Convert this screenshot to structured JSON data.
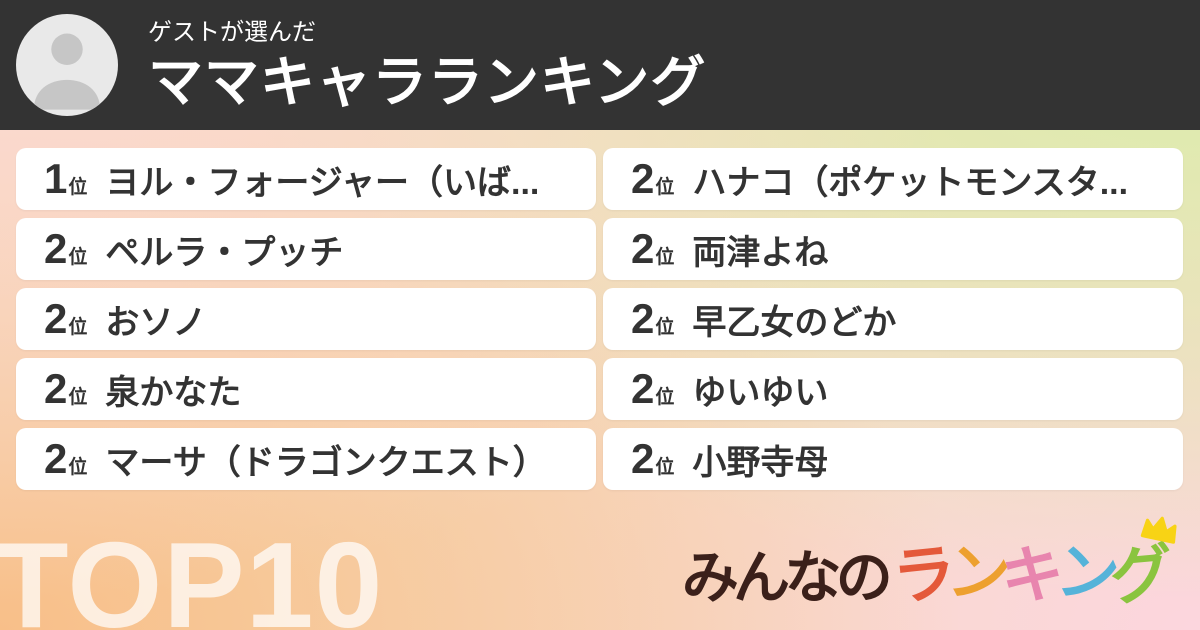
{
  "header": {
    "subtitle": "ゲストが選んだ",
    "title": "ママキャラランキング",
    "avatar": "guest-person-icon"
  },
  "ranking": {
    "rank_suffix": "位",
    "columns": [
      {
        "items": [
          {
            "rank": "1",
            "name": "ヨル・フォージャー（いば..."
          },
          {
            "rank": "2",
            "name": "ペルラ・プッチ"
          },
          {
            "rank": "2",
            "name": "おソノ"
          },
          {
            "rank": "2",
            "name": "泉かなた"
          },
          {
            "rank": "2",
            "name": "マーサ（ドラゴンクエスト）"
          }
        ]
      },
      {
        "items": [
          {
            "rank": "2",
            "name": "ハナコ（ポケットモンスタ..."
          },
          {
            "rank": "2",
            "name": "両津よね"
          },
          {
            "rank": "2",
            "name": "早乙女のどか"
          },
          {
            "rank": "2",
            "name": "ゆいゆい"
          },
          {
            "rank": "2",
            "name": "小野寺母"
          }
        ]
      }
    ]
  },
  "footer": {
    "top_label": "TOP10",
    "logo": {
      "part1": "みんなの",
      "part2_chars": [
        {
          "ch": "ラ",
          "color": "#e4593a"
        },
        {
          "ch": "ン",
          "color": "#eda02f"
        },
        {
          "ch": "キ",
          "color": "#e885ae"
        },
        {
          "ch": "ン",
          "color": "#55b3d9"
        },
        {
          "ch": "グ",
          "color": "#8ac43f"
        }
      ],
      "crown_color": "#f8d315"
    }
  },
  "colors": {
    "header_bg": "#333333",
    "card_bg": "#ffffff",
    "text": "#333333",
    "bg_top_left": "#fcd9d4",
    "bg_top_right": "#daeeab",
    "bg_bottom_left": "#f8bf89",
    "bg_bottom_right": "#fcd6de",
    "logo_part1": "#3b201a"
  }
}
